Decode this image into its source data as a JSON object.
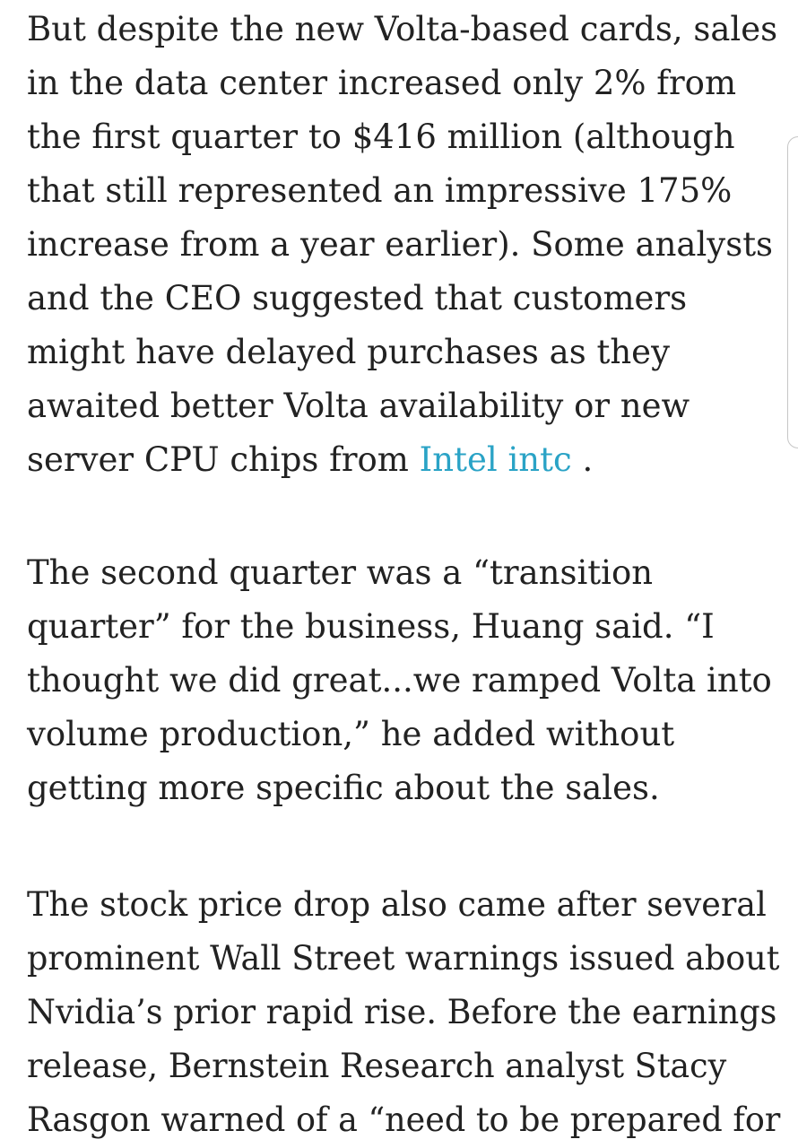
{
  "paragraphs": [
    {
      "lines": [
        "But despite the new Volta-based cards, sales",
        "in the data center increased only 2% from",
        "the first quarter to $416 million (although",
        "that still represented an impressive 175%",
        "increase from a year earlier). Some analysts",
        "and the CEO suggested that customers",
        "might have delayed purchases as they",
        "awaited better Volta availability or new"
      ],
      "last_line_prefix": "server CPU chips from ",
      "link_text": "Intel intc",
      "last_line_suffix": " ."
    },
    {
      "lines": [
        "The second quarter was a “transition",
        "quarter” for the business, Huang said. “I",
        "thought we did great...we ramped Volta into",
        "volume production,” he added without",
        "getting more specific about the sales."
      ]
    },
    {
      "lines": [
        "The stock price drop also came after several",
        "prominent Wall Street warnings issued about",
        "Nvidia’s prior rapid rise. Before the earnings",
        "release, Bernstein Research analyst Stacy",
        "Rasgon warned of a “need to be prepared for"
      ]
    }
  ],
  "colors": {
    "text": "#222222",
    "link": "#2aa3c6",
    "background": "#ffffff"
  }
}
